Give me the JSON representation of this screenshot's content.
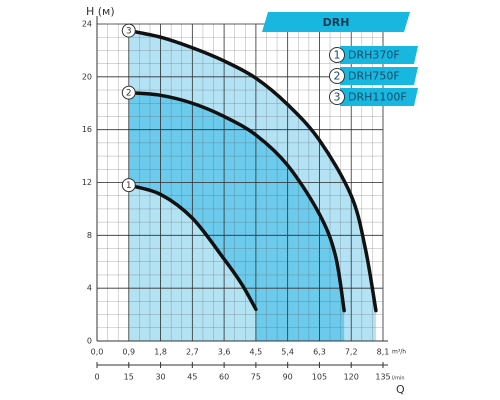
{
  "chart_data": {
    "type": "line",
    "title": "DRH",
    "y_label": "H (м)",
    "x_label": "m³/h",
    "x2_label": "l/min",
    "x2_axis_name": "Q",
    "xlim": [
      0,
      8.1
    ],
    "ylim": [
      0,
      24
    ],
    "xticks": [
      {
        "value": 0,
        "label": "0,0"
      },
      {
        "value": 0.9,
        "label": "0,9"
      },
      {
        "value": 1.8,
        "label": "1,8"
      },
      {
        "value": 2.7,
        "label": "2,7"
      },
      {
        "value": 3.6,
        "label": "3,6"
      },
      {
        "value": 4.5,
        "label": "4,5"
      },
      {
        "value": 5.4,
        "label": "5,4"
      },
      {
        "value": 6.3,
        "label": "6,3"
      },
      {
        "value": 7.2,
        "label": "7,2"
      },
      {
        "value": 8.1,
        "label": "8,1"
      }
    ],
    "yticks": [
      0,
      4,
      8,
      12,
      16,
      20,
      24
    ],
    "x2lim": [
      0,
      135
    ],
    "x2ticks": [
      0,
      15,
      30,
      45,
      60,
      75,
      90,
      105,
      120,
      135
    ],
    "grid": true,
    "series": [
      {
        "name": "DRH370F",
        "label": "1",
        "color": "#111111",
        "fill": "#bfe6f5",
        "x": [
          0.9,
          1.8,
          2.7,
          3.6,
          4.1,
          4.5
        ],
        "values": [
          11.8,
          11.1,
          9.3,
          6.2,
          4.3,
          2.4
        ]
      },
      {
        "name": "DRH750F",
        "label": "2",
        "color": "#111111",
        "fill": "#5fc6ea",
        "x": [
          0.9,
          1.8,
          2.7,
          3.6,
          4.5,
          5.4,
          6.3,
          6.75,
          7.0
        ],
        "values": [
          18.8,
          18.6,
          18,
          17,
          15.6,
          13.3,
          9.6,
          6.5,
          2.3
        ]
      },
      {
        "name": "DRH1100F",
        "label": "3",
        "color": "#111111",
        "fill": "#a6ddf2",
        "x": [
          0.9,
          1.8,
          2.7,
          3.6,
          4.5,
          5.4,
          6.3,
          7.2,
          7.6,
          7.9
        ],
        "values": [
          23.5,
          23,
          22.2,
          21.2,
          19.9,
          17.9,
          15.2,
          11.0,
          7.0,
          2.3
        ]
      }
    ]
  }
}
